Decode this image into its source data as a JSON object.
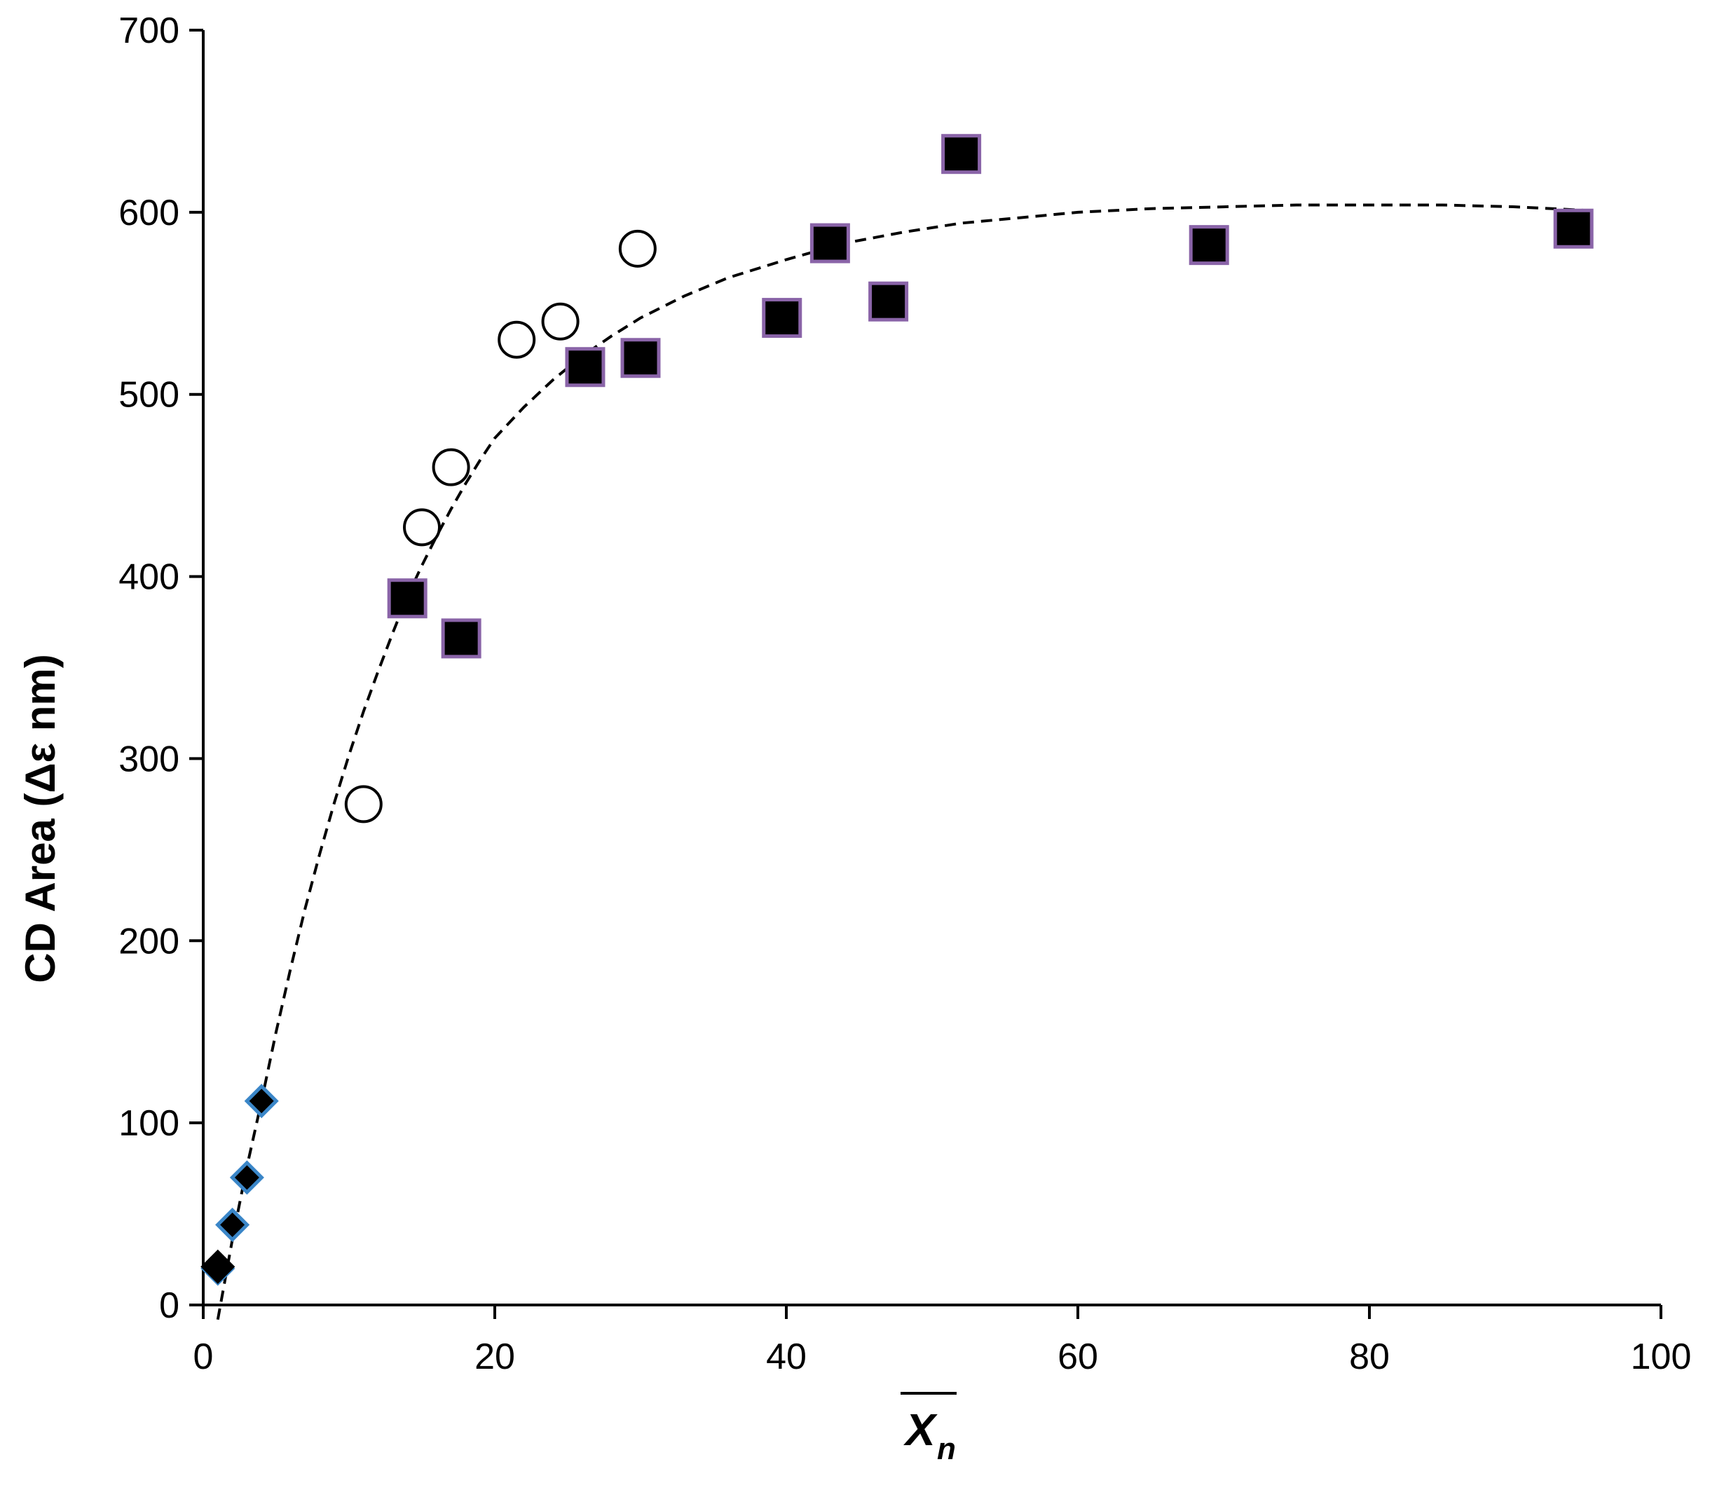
{
  "chart_data": {
    "type": "scatter",
    "title": "",
    "xlabel": "X",
    "xlabel_subscript": "n",
    "ylabel": "CD Area (Δε nm)",
    "xlim": [
      0,
      100
    ],
    "ylim": [
      0,
      700
    ],
    "x_ticks": [
      0,
      20,
      40,
      60,
      80,
      100
    ],
    "y_ticks": [
      0,
      100,
      200,
      300,
      400,
      500,
      600,
      700
    ],
    "grid": false,
    "legend": "none",
    "series": [
      {
        "marker": "diamond",
        "fill": "#000000",
        "stroke": "#3a86c8",
        "points": [
          [
            1,
            20
          ],
          [
            2,
            44
          ],
          [
            3,
            70
          ],
          [
            4,
            112
          ]
        ]
      },
      {
        "marker": "diamond",
        "fill": "#000000",
        "stroke": "#000000",
        "points": [
          [
            1,
            21
          ]
        ]
      },
      {
        "marker": "open-circle",
        "fill": "#ffffff",
        "stroke": "#000000",
        "points": [
          [
            11,
            275
          ],
          [
            15,
            427
          ],
          [
            17,
            460
          ],
          [
            21.5,
            530
          ],
          [
            24.5,
            540
          ],
          [
            29.8,
            580
          ]
        ]
      },
      {
        "marker": "square",
        "fill": "#000000",
        "stroke": "#8a64a8",
        "points": [
          [
            14,
            388
          ],
          [
            17.7,
            366
          ],
          [
            26.2,
            515
          ],
          [
            30,
            520
          ],
          [
            39.7,
            542
          ],
          [
            43,
            583
          ],
          [
            47,
            551
          ],
          [
            52,
            632
          ],
          [
            69,
            582
          ],
          [
            94,
            591
          ]
        ]
      }
    ],
    "fit_curve": {
      "style": "dashed",
      "color": "#000000",
      "points": [
        [
          1.0,
          -8
        ],
        [
          2.0,
          36
        ],
        [
          3.0,
          76
        ],
        [
          4.0,
          112
        ],
        [
          5.0,
          150
        ],
        [
          6.0,
          185
        ],
        [
          7.0,
          218
        ],
        [
          8.0,
          248
        ],
        [
          9.0,
          276
        ],
        [
          10.0,
          302
        ],
        [
          11.0,
          326
        ],
        [
          12.0,
          348
        ],
        [
          13.0,
          369
        ],
        [
          14.0,
          389
        ],
        [
          15.0,
          406
        ],
        [
          16.0,
          422
        ],
        [
          17.0,
          437
        ],
        [
          18.0,
          451
        ],
        [
          19.0,
          464
        ],
        [
          20.0,
          476
        ],
        [
          22.0,
          493
        ],
        [
          24.0,
          508
        ],
        [
          26.0,
          521
        ],
        [
          28.0,
          532
        ],
        [
          30.0,
          542
        ],
        [
          33.0,
          554
        ],
        [
          36.0,
          564
        ],
        [
          40.0,
          574
        ],
        [
          44.0,
          583
        ],
        [
          48.0,
          589
        ],
        [
          52.0,
          594
        ],
        [
          56.0,
          597
        ],
        [
          60.0,
          600
        ],
        [
          65.0,
          602
        ],
        [
          70.0,
          603
        ],
        [
          75.0,
          604
        ],
        [
          80.0,
          604
        ],
        [
          85.0,
          604
        ],
        [
          90.0,
          603
        ],
        [
          95.0,
          601
        ]
      ]
    }
  }
}
